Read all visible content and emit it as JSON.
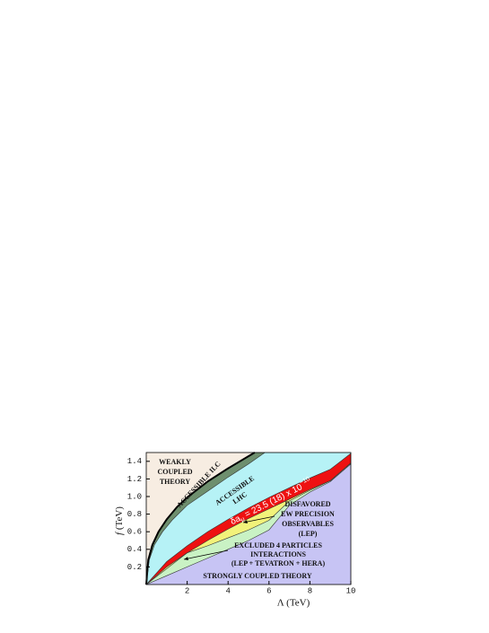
{
  "chart_data": {
    "type": "region",
    "x_label": "Λ (TeV)",
    "y_label": [
      "f",
      " (TeV)"
    ],
    "xlim": [
      0,
      10
    ],
    "ylim": [
      0,
      1.5
    ],
    "xticks": [
      2,
      4,
      6,
      8,
      10
    ],
    "yticks": [
      0.2,
      0.4,
      0.6,
      0.8,
      {
        "value": 1,
        "label": "1.0"
      },
      1.2,
      1.4
    ],
    "background": "#f7ede2",
    "series": [
      {
        "color": "#6e8f6e",
        "stroke": "#000000",
        "x": [
          0,
          0.1,
          0.3,
          0.6,
          1,
          1.5,
          2,
          3,
          4,
          5.3
        ],
        "values": [
          0,
          0.28,
          0.45,
          0.6,
          0.74,
          0.88,
          0.99,
          1.17,
          1.32,
          1.5
        ]
      },
      {
        "color": "#b6f2f6",
        "stroke": "#333333",
        "x": [
          0,
          0.15,
          0.4,
          0.8,
          1.3,
          2,
          3,
          4,
          5,
          5.8
        ],
        "values": [
          0,
          0.28,
          0.45,
          0.6,
          0.74,
          0.9,
          1.06,
          1.22,
          1.37,
          1.5
        ]
      },
      {
        "color": "#ee1111",
        "stroke": "#333333",
        "x": [
          0,
          1,
          2,
          3,
          4,
          5,
          6,
          7,
          8,
          9,
          10
        ],
        "values": [
          0,
          0.26,
          0.44,
          0.6,
          0.74,
          0.87,
          0.99,
          1.1,
          1.21,
          1.31,
          1.49
        ]
      },
      {
        "color": "#f2f27a",
        "stroke": "#333333",
        "x": [
          0,
          1,
          2,
          3,
          4,
          5,
          6,
          7,
          8,
          9,
          10
        ],
        "values": [
          0,
          0.2,
          0.36,
          0.5,
          0.63,
          0.75,
          0.86,
          0.97,
          1.08,
          1.18,
          1.38
        ]
      },
      {
        "color": "#c9f2c4",
        "stroke": "#333333",
        "x": [
          0,
          2,
          2.5,
          3,
          4,
          5,
          6,
          7,
          8,
          9,
          10
        ],
        "values": [
          0,
          0.36,
          0.4,
          0.44,
          0.53,
          0.62,
          0.73,
          0.95,
          1.07,
          1.18,
          1.38
        ]
      },
      {
        "color": "#c7c4f4",
        "stroke": "#333333",
        "x": [
          0,
          1,
          2,
          3,
          4,
          5,
          6,
          7,
          8,
          9,
          10
        ],
        "values": [
          0,
          0.1,
          0.2,
          0.3,
          0.4,
          0.5,
          0.62,
          0.9,
          1.05,
          1.17,
          1.37
        ]
      }
    ],
    "annotations": [
      {
        "lines": [
          "WEAKLY",
          "COUPLED",
          "THEORY"
        ]
      },
      {
        "lines": [
          "ACCESSIBLE  ILC"
        ]
      },
      {
        "lines": [
          "ACCESSIBLE",
          "LHC"
        ]
      },
      {
        "parts": [
          "δa",
          "μ",
          " = 23.5 (18) x 10",
          "−10"
        ]
      },
      {
        "lines": [
          "DISFAVORED",
          "EW PRECISION",
          "OBSERVABLES",
          "(LEP)"
        ]
      },
      {
        "lines": [
          "EXCLUDED  4 PARTICLES",
          "INTERACTIONS",
          "(LEP + TEVATRON + HERA)"
        ]
      },
      {
        "lines": [
          "STRONGLY COUPLED THEORY"
        ]
      }
    ]
  }
}
